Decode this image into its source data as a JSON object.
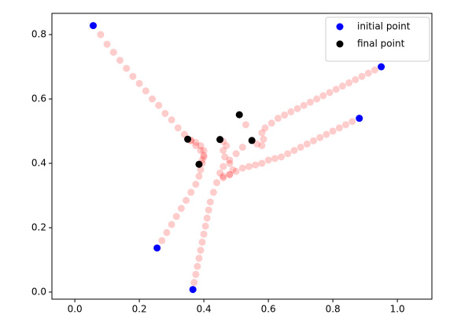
{
  "chart_data": {
    "type": "scatter",
    "xlim": [
      -0.071,
      1.107
    ],
    "ylim": [
      -0.022,
      0.866
    ],
    "xticks": [
      {
        "value": 0,
        "label": "0.0"
      },
      {
        "value": 0.2,
        "label": "0.2"
      },
      {
        "value": 0.4,
        "label": "0.4"
      },
      {
        "value": 0.6,
        "label": "0.6"
      },
      {
        "value": 0.8,
        "label": "0.8"
      },
      {
        "value": 1,
        "label": "1.0"
      }
    ],
    "yticks": [
      {
        "value": 0,
        "label": "0.0"
      },
      {
        "value": 0.2,
        "label": "0.2"
      },
      {
        "value": 0.4,
        "label": "0.4"
      },
      {
        "value": 0.6,
        "label": "0.6"
      },
      {
        "value": 0.8,
        "label": "0.8"
      }
    ],
    "grid": false,
    "legend": "upper right",
    "series": [
      {
        "name": "initial point",
        "color": "#0000ff",
        "x": [
          0.057,
          0.255,
          0.366,
          0.95,
          0.882
        ],
        "y": [
          0.828,
          0.137,
          0.008,
          0.7,
          0.54
        ]
      },
      {
        "name": "final point",
        "color": "#000000",
        "x": [
          0.385,
          0.35,
          0.45,
          0.549,
          0.51
        ],
        "y": [
          0.397,
          0.475,
          0.474,
          0.471,
          0.551
        ]
      },
      {
        "color": "#ff0000",
        "alpha": 0.2,
        "x": [
          0.057,
          0.08,
          0.1,
          0.12,
          0.14,
          0.16,
          0.18,
          0.2,
          0.22,
          0.24,
          0.26,
          0.28,
          0.3,
          0.32,
          0.34,
          0.36,
          0.375,
          0.39,
          0.4,
          0.395,
          0.385
        ],
        "y": [
          0.828,
          0.8,
          0.77,
          0.745,
          0.72,
          0.695,
          0.67,
          0.648,
          0.625,
          0.6,
          0.58,
          0.555,
          0.535,
          0.51,
          0.49,
          0.47,
          0.455,
          0.44,
          0.425,
          0.41,
          0.397
        ]
      },
      {
        "color": "#ff0000",
        "alpha": 0.2,
        "x": [
          0.255,
          0.27,
          0.285,
          0.3,
          0.315,
          0.33,
          0.345,
          0.36,
          0.375,
          0.385,
          0.39,
          0.395,
          0.4,
          0.4,
          0.39,
          0.375,
          0.36,
          0.35
        ],
        "y": [
          0.137,
          0.16,
          0.185,
          0.21,
          0.235,
          0.26,
          0.285,
          0.31,
          0.335,
          0.36,
          0.38,
          0.4,
          0.42,
          0.44,
          0.455,
          0.465,
          0.472,
          0.475
        ]
      },
      {
        "color": "#ff0000",
        "alpha": 0.2,
        "x": [
          0.366,
          0.37,
          0.375,
          0.38,
          0.385,
          0.39,
          0.395,
          0.4,
          0.405,
          0.41,
          0.415,
          0.42,
          0.43,
          0.44,
          0.46,
          0.48,
          0.49,
          0.48,
          0.465,
          0.46,
          0.47,
          0.46,
          0.45
        ],
        "y": [
          0.008,
          0.03,
          0.055,
          0.08,
          0.105,
          0.13,
          0.155,
          0.18,
          0.205,
          0.23,
          0.255,
          0.28,
          0.31,
          0.34,
          0.355,
          0.365,
          0.38,
          0.4,
          0.42,
          0.44,
          0.455,
          0.468,
          0.474
        ]
      },
      {
        "color": "#ff0000",
        "alpha": 0.2,
        "x": [
          0.95,
          0.93,
          0.91,
          0.89,
          0.87,
          0.85,
          0.83,
          0.81,
          0.79,
          0.77,
          0.75,
          0.73,
          0.71,
          0.69,
          0.67,
          0.65,
          0.63,
          0.61,
          0.59,
          0.58,
          0.585,
          0.58,
          0.565,
          0.549
        ],
        "y": [
          0.7,
          0.69,
          0.68,
          0.67,
          0.66,
          0.65,
          0.64,
          0.63,
          0.62,
          0.61,
          0.6,
          0.59,
          0.58,
          0.57,
          0.56,
          0.55,
          0.54,
          0.525,
          0.51,
          0.495,
          0.475,
          0.455,
          0.46,
          0.471
        ]
      },
      {
        "color": "#ff0000",
        "alpha": 0.2,
        "x": [
          0.882,
          0.86,
          0.84,
          0.82,
          0.8,
          0.78,
          0.76,
          0.74,
          0.72,
          0.7,
          0.68,
          0.66,
          0.64,
          0.62,
          0.6,
          0.58,
          0.56,
          0.54,
          0.52,
          0.5,
          0.48,
          0.46,
          0.45,
          0.46,
          0.48,
          0.5,
          0.52,
          0.53,
          0.51
        ],
        "y": [
          0.54,
          0.53,
          0.52,
          0.51,
          0.5,
          0.49,
          0.48,
          0.47,
          0.46,
          0.45,
          0.44,
          0.43,
          0.42,
          0.415,
          0.41,
          0.4,
          0.395,
          0.39,
          0.385,
          0.375,
          0.365,
          0.36,
          0.37,
          0.39,
          0.41,
          0.43,
          0.45,
          0.52,
          0.551
        ]
      }
    ]
  }
}
